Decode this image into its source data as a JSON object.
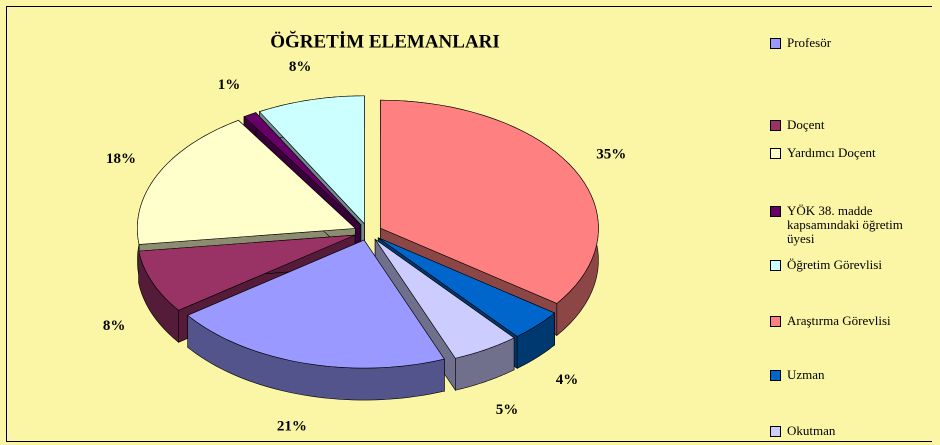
{
  "chart_data": {
    "type": "pie3d",
    "title": "ÖĞRETİM ELEMANLARI",
    "categories": [
      "Profesör",
      "Doçent",
      "Yardımcı Doçent",
      "YÖK 38. madde kapsamındaki öğretim üyesi",
      "Öğretim Görevlisi",
      "Araştırma Görevlisi",
      "Uzman",
      "Okutman"
    ],
    "values": [
      21,
      8,
      18,
      1,
      8,
      35,
      4,
      5
    ],
    "value_labels": [
      "21%",
      "8%",
      "18%",
      "1%",
      "8%",
      "35%",
      "4%",
      "5%"
    ],
    "colors": [
      "#9999ff",
      "#993366",
      "#ffffcc",
      "#660066",
      "#ccffff",
      "#ff8080",
      "#0066cc",
      "#ccccff"
    ],
    "legend": "right"
  }
}
